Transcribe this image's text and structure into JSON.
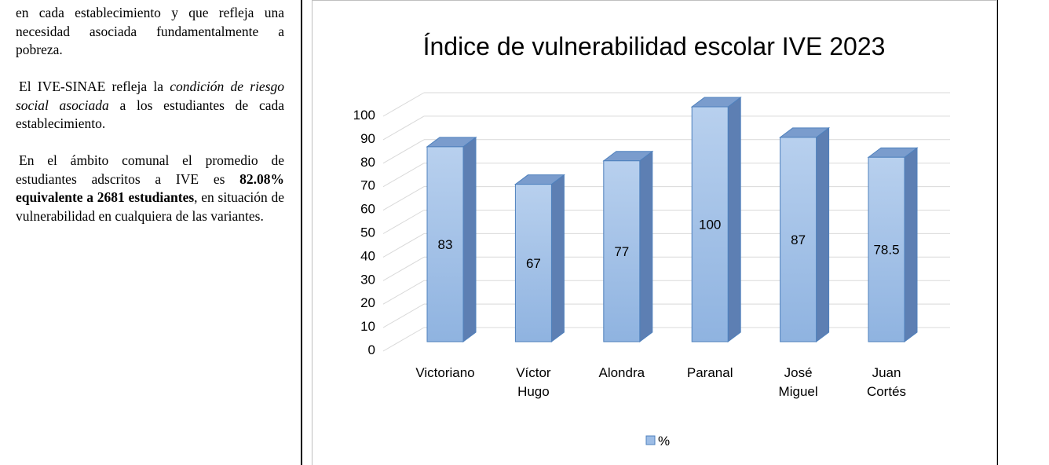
{
  "text": {
    "paragraphs": [
      [
        {
          "text": "en cada establecimiento y que refleja una necesidad asociada fundamentalmente a pobreza.",
          "style": "normal"
        }
      ],
      [
        {
          "text": "El IVE-SINAE refleja la ",
          "style": "normal"
        },
        {
          "text": "condición de riesgo social asociada",
          "style": "italic"
        },
        {
          "text": " a los estudiantes de cada establecimiento.",
          "style": "normal"
        }
      ],
      [
        {
          "text": "En el ámbito comunal el promedio de estudiantes adscritos a IVE es ",
          "style": "normal"
        },
        {
          "text": "82.08% equivalente a 2681 estudiantes",
          "style": "bold"
        },
        {
          "text": ", en situación de vulnerabilidad en cualquiera de las variantes.",
          "style": "normal"
        }
      ]
    ]
  },
  "chart_data": {
    "type": "bar3d",
    "title": "Índice de vulnerabilidad escolar IVE 2023",
    "categories": [
      "Victoriano",
      "Víctor Hugo",
      "Alondra",
      "Paranal",
      "José Miguel",
      "Juan Cortés"
    ],
    "series": [
      {
        "name": "%",
        "color": "#9dbde6",
        "values": [
          83,
          67,
          77,
          100,
          87,
          78.5
        ]
      }
    ],
    "ylim": [
      0,
      100
    ],
    "yticks": [
      0,
      10,
      20,
      30,
      40,
      50,
      60,
      70,
      80,
      90,
      100
    ],
    "grid": true,
    "legend": "bottom"
  }
}
